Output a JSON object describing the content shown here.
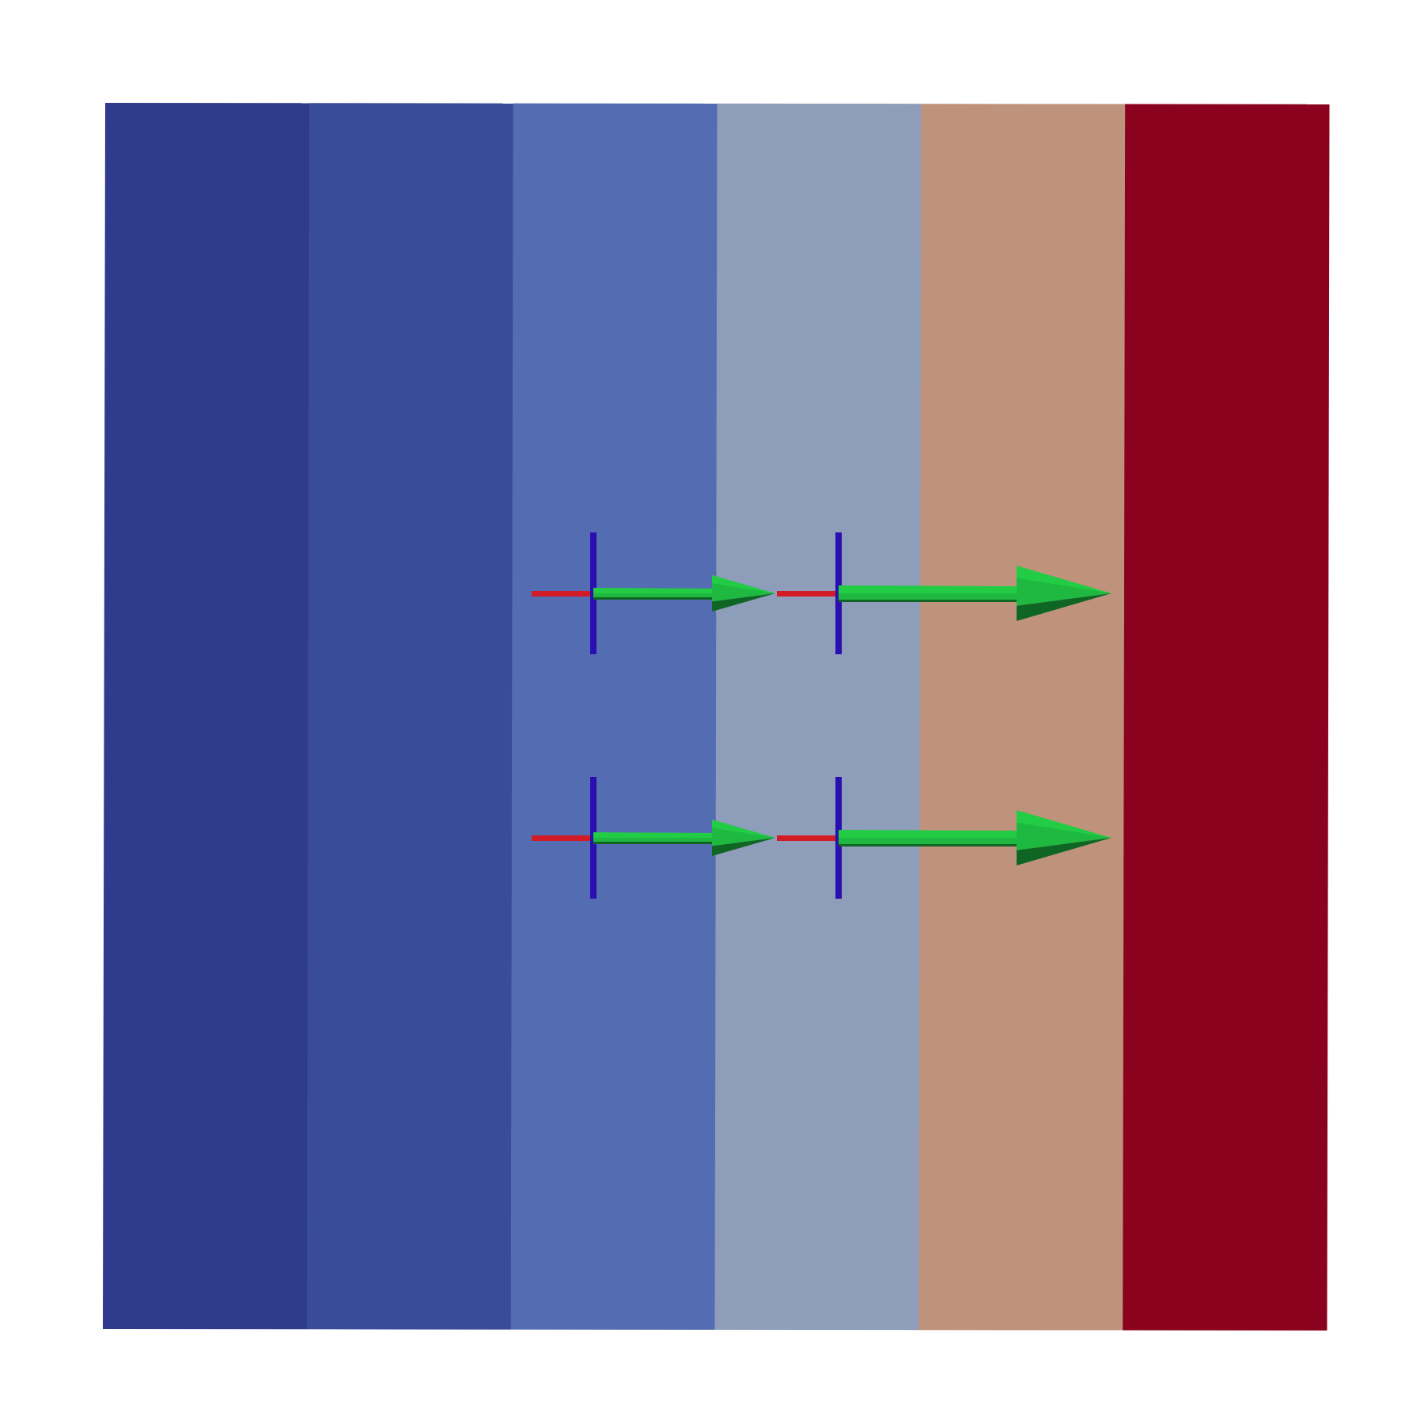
{
  "background_color": "#ffffff",
  "colormap_bands": [
    {
      "name": "band-1",
      "color": "#2f3b8c"
    },
    {
      "name": "band-2",
      "color": "#384c9b"
    },
    {
      "name": "band-3",
      "color": "#546db2"
    },
    {
      "name": "band-4",
      "color": "#8d9dba"
    },
    {
      "name": "band-5",
      "color": "#bf937b"
    },
    {
      "name": "band-6",
      "color": "#8b021f"
    }
  ],
  "glyph_colors": {
    "x_axis": "#d41a24",
    "y_axis": "#2a0fb0",
    "arrow_light": "#22cc44",
    "arrow_mid": "#1fb840",
    "arrow_dark": "#0f6624"
  },
  "vector_glyphs": [
    {
      "row": "top",
      "column": "left",
      "magnitude": "short"
    },
    {
      "row": "top",
      "column": "right",
      "magnitude": "long"
    },
    {
      "row": "bottom",
      "column": "left",
      "magnitude": "short"
    },
    {
      "row": "bottom",
      "column": "right",
      "magnitude": "long"
    }
  ]
}
